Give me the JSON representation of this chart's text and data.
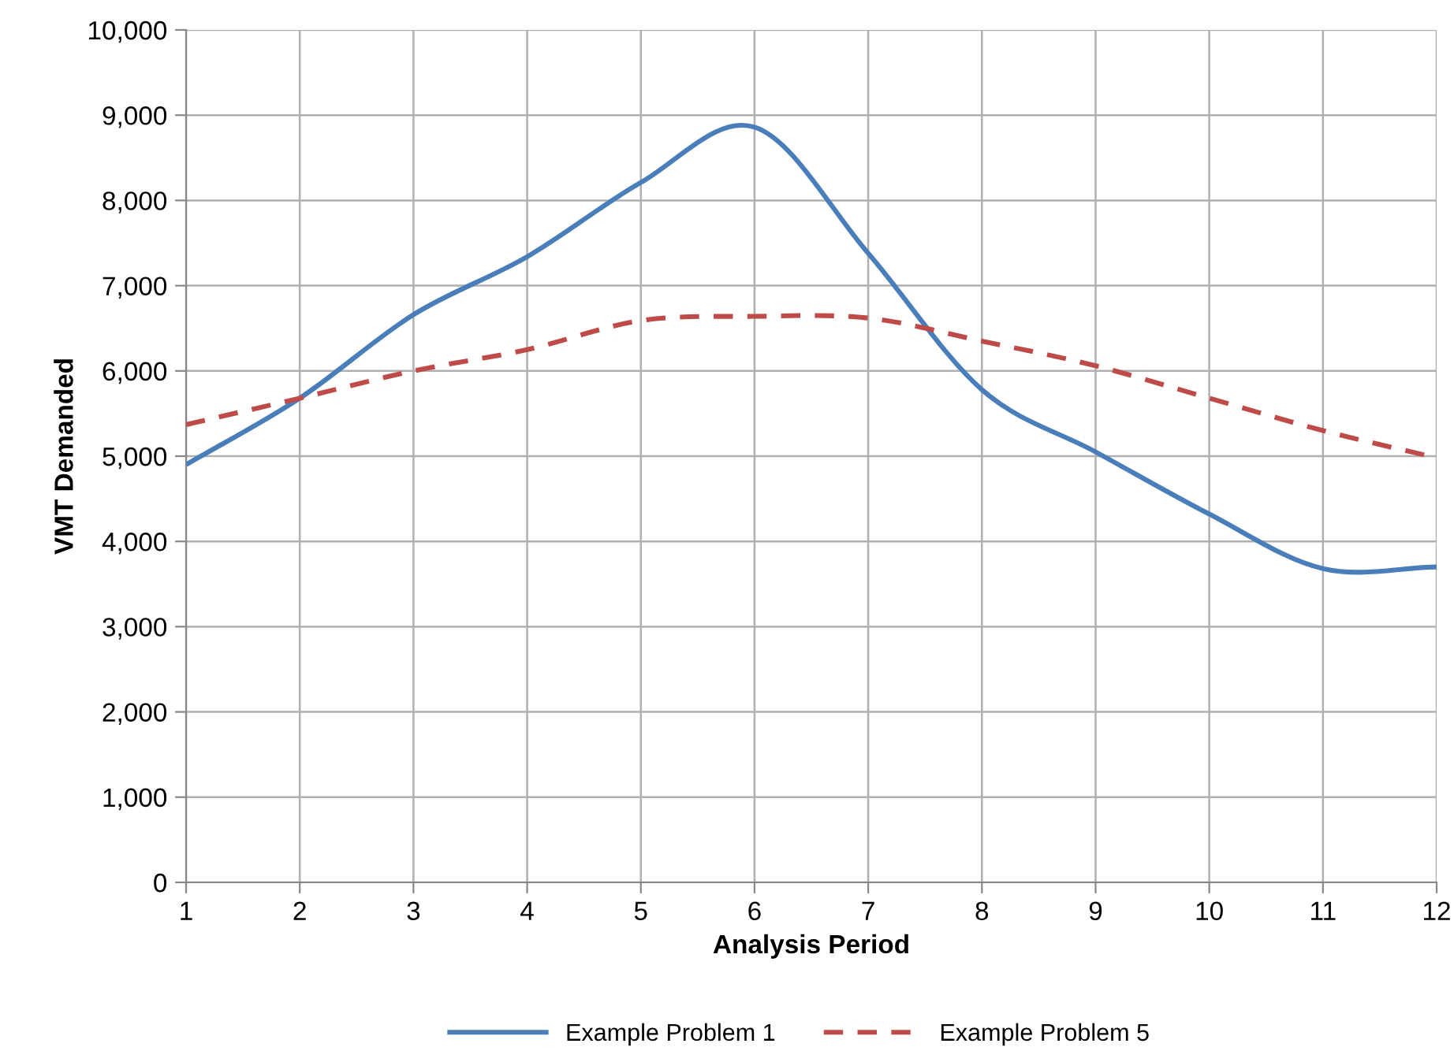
{
  "chart_data": {
    "type": "line",
    "xlabel": "Analysis Period",
    "ylabel": "VMT Demanded",
    "x": [
      1,
      2,
      3,
      4,
      5,
      6,
      7,
      8,
      9,
      10,
      11,
      12
    ],
    "series": [
      {
        "name": "Example Problem 1",
        "color": "#4a7ebb",
        "line_style": "solid",
        "values": [
          4900,
          5680,
          6660,
          7340,
          8210,
          8860,
          7380,
          5780,
          5050,
          4320,
          3680,
          3700
        ]
      },
      {
        "name": "Example Problem 5",
        "color": "#be4b48",
        "line_style": "dashed",
        "values": [
          5370,
          5680,
          6000,
          6250,
          6590,
          6640,
          6620,
          6350,
          6060,
          5680,
          5300,
          4980
        ]
      }
    ],
    "xlim": [
      1,
      12
    ],
    "xticks": [
      1,
      2,
      3,
      4,
      5,
      6,
      7,
      8,
      9,
      10,
      11,
      12
    ],
    "ylim": [
      0,
      10000
    ],
    "yticks": [
      {
        "value": 0,
        "label": "0"
      },
      {
        "value": 1000,
        "label": "1,000"
      },
      {
        "value": 2000,
        "label": "2,000"
      },
      {
        "value": 3000,
        "label": "3,000"
      },
      {
        "value": 4000,
        "label": "4,000"
      },
      {
        "value": 5000,
        "label": "5,000"
      },
      {
        "value": 6000,
        "label": "6,000"
      },
      {
        "value": 7000,
        "label": "7,000"
      },
      {
        "value": 8000,
        "label": "8,000"
      },
      {
        "value": 9000,
        "label": "9,000"
      },
      {
        "value": 10000,
        "label": "10,000"
      }
    ],
    "grid": true,
    "legend": "bottom",
    "marker": "none"
  }
}
